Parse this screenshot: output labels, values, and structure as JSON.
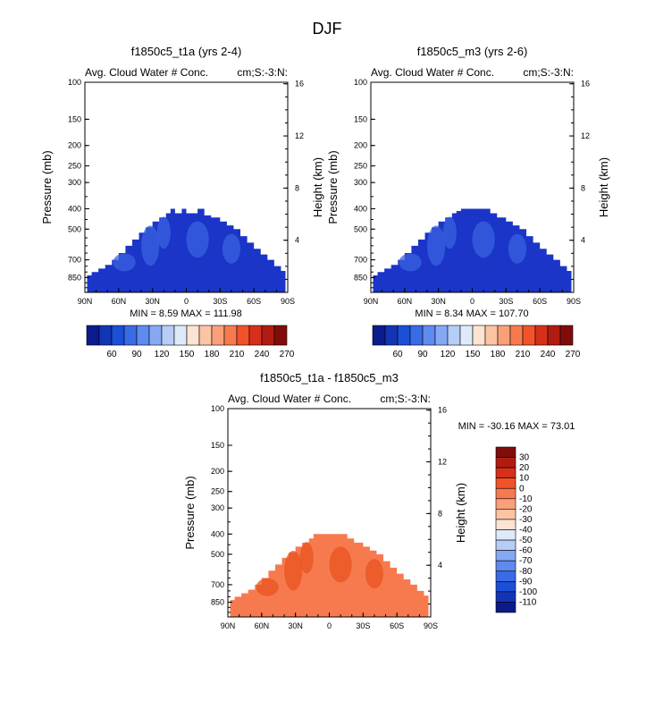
{
  "page_title": "DJF",
  "colors": {
    "cb_abs": [
      "#0b1b8c",
      "#1335b5",
      "#1a4fd6",
      "#3a6be6",
      "#5f8af0",
      "#86a8f4",
      "#b6cdf7",
      "#deeaf9",
      "#fde3d2",
      "#fbc4a3",
      "#f9a07a",
      "#f77a4f",
      "#f2522a",
      "#d6301a",
      "#b01c12",
      "#7f0d0b"
    ],
    "cb_diff": [
      "#0b1b8c",
      "#1335b5",
      "#1a4fd6",
      "#3a6be6",
      "#5f8af0",
      "#86a8f4",
      "#b6cdf7",
      "#deeaf9",
      "#fde3d2",
      "#fbc4a3",
      "#f9a07a",
      "#f77a4f",
      "#f2522a",
      "#d6301a",
      "#b01c12",
      "#7f0d0b"
    ],
    "panel1_fill": "#1a35c8",
    "panel1_inner": "#3a62e0",
    "panel2_fill": "#1a35c8",
    "panel2_inner": "#3a62e0",
    "panel3_fill": "#f77a4f",
    "panel3_inner": "#e8541f"
  },
  "chart_data": [
    {
      "type": "contour",
      "title": "f1850c5_t1a (yrs 2-4)",
      "left_label": "Avg. Cloud Water # Conc.",
      "right_label": "cm;S:-3:N:",
      "xlabel": "",
      "ylabel": "Pressure (mb)",
      "ylabel_right": "Height (km)",
      "x_ticks": [
        "90N",
        "60N",
        "30N",
        "0",
        "30S",
        "60S",
        "90S"
      ],
      "x_tick_values": [
        90,
        60,
        30,
        0,
        -30,
        -60,
        -90
      ],
      "xlim": [
        90,
        -90
      ],
      "y_ticks": [
        "100",
        "150",
        "200",
        "250",
        "300",
        "400",
        "500",
        "700",
        "850"
      ],
      "y_tick_values": [
        100,
        150,
        200,
        250,
        300,
        400,
        500,
        700,
        850
      ],
      "ylim": [
        100,
        1000
      ],
      "height_ticks": [
        "16",
        "12",
        "8",
        "4"
      ],
      "height_tick_values": [
        16,
        12,
        8,
        4
      ],
      "stats": "MIN =   8.59  MAX = 111.98",
      "colorbar_labels": [
        "60",
        "90",
        "120",
        "150",
        "180",
        "210",
        "240",
        "270"
      ],
      "data_top_pressure": [
        [
          88,
          830
        ],
        [
          84,
          800
        ],
        [
          78,
          770
        ],
        [
          72,
          740
        ],
        [
          66,
          700
        ],
        [
          60,
          650
        ],
        [
          54,
          600
        ],
        [
          48,
          560
        ],
        [
          42,
          520
        ],
        [
          36,
          490
        ],
        [
          30,
          460
        ],
        [
          24,
          440
        ],
        [
          18,
          420
        ],
        [
          14,
          400
        ],
        [
          10,
          420
        ],
        [
          4,
          400
        ],
        [
          0,
          420
        ],
        [
          -6,
          420
        ],
        [
          -10,
          400
        ],
        [
          -16,
          430
        ],
        [
          -22,
          440
        ],
        [
          -30,
          460
        ],
        [
          -36,
          480
        ],
        [
          -42,
          500
        ],
        [
          -48,
          540
        ],
        [
          -54,
          580
        ],
        [
          -60,
          620
        ],
        [
          -66,
          660
        ],
        [
          -72,
          700
        ],
        [
          -78,
          750
        ],
        [
          -84,
          790
        ],
        [
          -88,
          830
        ]
      ]
    },
    {
      "type": "contour",
      "title": "f1850c5_m3 (yrs 2-6)",
      "left_label": "Avg. Cloud Water # Conc.",
      "right_label": "cm;S:-3:N:",
      "xlabel": "",
      "ylabel": "Pressure (mb)",
      "ylabel_right": "Height (km)",
      "x_ticks": [
        "90N",
        "60N",
        "30N",
        "0",
        "30S",
        "60S",
        "90S"
      ],
      "x_tick_values": [
        90,
        60,
        30,
        0,
        -30,
        -60,
        -90
      ],
      "xlim": [
        90,
        -90
      ],
      "y_ticks": [
        "100",
        "150",
        "200",
        "250",
        "300",
        "400",
        "500",
        "700",
        "850"
      ],
      "y_tick_values": [
        100,
        150,
        200,
        250,
        300,
        400,
        500,
        700,
        850
      ],
      "ylim": [
        100,
        1000
      ],
      "height_ticks": [
        "16",
        "12",
        "8",
        "4"
      ],
      "height_tick_values": [
        16,
        12,
        8,
        4
      ],
      "stats": "MIN =   8.34  MAX = 107.70",
      "colorbar_labels": [
        "60",
        "90",
        "120",
        "150",
        "180",
        "210",
        "240",
        "270"
      ],
      "data_top_pressure": [
        [
          88,
          830
        ],
        [
          84,
          800
        ],
        [
          78,
          770
        ],
        [
          72,
          740
        ],
        [
          66,
          700
        ],
        [
          60,
          650
        ],
        [
          54,
          600
        ],
        [
          48,
          560
        ],
        [
          42,
          520
        ],
        [
          36,
          490
        ],
        [
          30,
          460
        ],
        [
          24,
          440
        ],
        [
          18,
          420
        ],
        [
          14,
          410
        ],
        [
          10,
          400
        ],
        [
          4,
          400
        ],
        [
          0,
          400
        ],
        [
          -6,
          400
        ],
        [
          -10,
          400
        ],
        [
          -16,
          420
        ],
        [
          -22,
          440
        ],
        [
          -30,
          460
        ],
        [
          -36,
          480
        ],
        [
          -42,
          500
        ],
        [
          -48,
          540
        ],
        [
          -54,
          580
        ],
        [
          -60,
          620
        ],
        [
          -66,
          660
        ],
        [
          -72,
          700
        ],
        [
          -78,
          750
        ],
        [
          -84,
          790
        ],
        [
          -88,
          830
        ]
      ]
    },
    {
      "type": "contour",
      "title": "f1850c5_t1a - f1850c5_m3",
      "left_label": "Avg. Cloud Water # Conc.",
      "right_label": "cm;S:-3:N:",
      "xlabel": "",
      "ylabel": "Pressure (mb)",
      "ylabel_right": "Height (km)",
      "x_ticks": [
        "90N",
        "60N",
        "30N",
        "0",
        "30S",
        "60S",
        "90S"
      ],
      "x_tick_values": [
        90,
        60,
        30,
        0,
        -30,
        -60,
        -90
      ],
      "xlim": [
        90,
        -90
      ],
      "y_ticks": [
        "100",
        "150",
        "200",
        "250",
        "300",
        "400",
        "500",
        "700",
        "850"
      ],
      "y_tick_values": [
        100,
        150,
        200,
        250,
        300,
        400,
        500,
        700,
        850
      ],
      "ylim": [
        100,
        1000
      ],
      "height_ticks": [
        "16",
        "12",
        "8",
        "4"
      ],
      "height_tick_values": [
        16,
        12,
        8,
        4
      ],
      "stats": "MIN = -30.16  MAX =  73.01",
      "colorbar_labels": [
        "30",
        "20",
        "10",
        "0",
        "-10",
        "-20",
        "-30",
        "-40",
        "-50",
        "-60",
        "-70",
        "-80",
        "-90",
        "-100",
        "-110"
      ],
      "data_top_pressure": [
        [
          88,
          830
        ],
        [
          84,
          800
        ],
        [
          78,
          770
        ],
        [
          72,
          740
        ],
        [
          66,
          700
        ],
        [
          60,
          650
        ],
        [
          54,
          600
        ],
        [
          48,
          560
        ],
        [
          42,
          520
        ],
        [
          36,
          490
        ],
        [
          30,
          460
        ],
        [
          24,
          440
        ],
        [
          18,
          420
        ],
        [
          14,
          400
        ],
        [
          10,
          400
        ],
        [
          4,
          400
        ],
        [
          0,
          400
        ],
        [
          -6,
          400
        ],
        [
          -10,
          400
        ],
        [
          -16,
          420
        ],
        [
          -22,
          440
        ],
        [
          -30,
          460
        ],
        [
          -36,
          480
        ],
        [
          -42,
          500
        ],
        [
          -48,
          540
        ],
        [
          -54,
          580
        ],
        [
          -60,
          620
        ],
        [
          -66,
          660
        ],
        [
          -72,
          700
        ],
        [
          -78,
          750
        ],
        [
          -84,
          790
        ],
        [
          -88,
          830
        ]
      ]
    }
  ]
}
